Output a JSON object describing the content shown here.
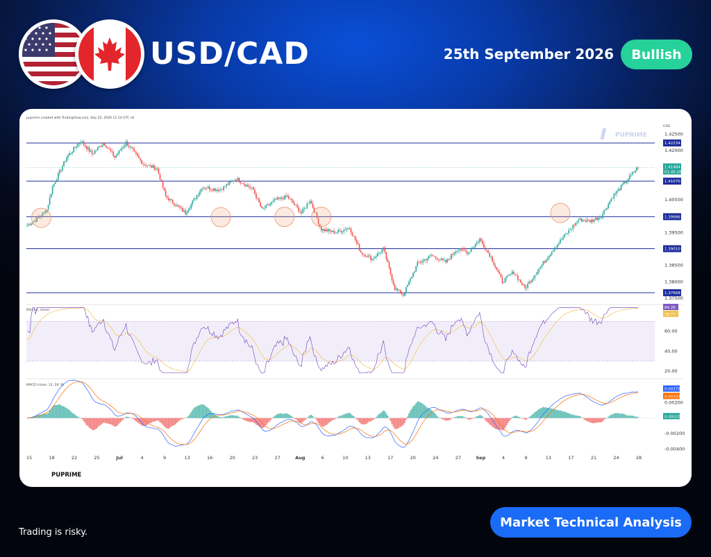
{
  "header": {
    "pair": "USD/CAD",
    "date": "25th September 2026",
    "bias": "Bullish",
    "flags": [
      "us-flag-icon",
      "canada-flag-icon"
    ]
  },
  "footer": {
    "disclaimer": "Trading is risky.",
    "button": "Market Technical Analysis"
  },
  "colors": {
    "accent_blue": "#1a6bf5",
    "bullish_green": "#26d29a",
    "candle_up": "#26a69a",
    "candle_down": "#ef5350",
    "level_line": "#1d2d9c"
  },
  "chart_data": {
    "type": "candlestick",
    "watermark": "PUPRIME",
    "caption": "puprime created with TradingView.com, Sep 25, 2026 11:14 UTC+8",
    "currency": "CAD",
    "price_axis": {
      "ticks": [
        "1.42500",
        "1.42000",
        "1.40500",
        "1.39500",
        "1.38500",
        "1.38000",
        "1.37500"
      ],
      "ylim": [
        1.3735,
        1.4285
      ]
    },
    "price_labels": [
      "1.42234",
      "1.41070",
      "1.39986",
      "1.39010",
      "1.37668"
    ],
    "horizontal_levels": [
      1.42234,
      1.4107,
      1.39986,
      1.3901,
      1.37668
    ],
    "current_price": {
      "value": "1.41484",
      "countdown": "01:45:26"
    },
    "x_ticks": [
      "15",
      "18",
      "22",
      "25",
      "Jul",
      "4",
      "9",
      "13",
      "16",
      "20",
      "23",
      "27",
      "Aug",
      "6",
      "10",
      "13",
      "17",
      "20",
      "24",
      "27",
      "Sep",
      "4",
      "9",
      "13",
      "17",
      "21",
      "24",
      "28"
    ],
    "close_path": [
      {
        "i": 0,
        "v": 1.3972
      },
      {
        "i": 8,
        "v": 1.3995
      },
      {
        "i": 14,
        "v": 1.402
      },
      {
        "i": 18,
        "v": 1.409
      },
      {
        "i": 28,
        "v": 1.418
      },
      {
        "i": 38,
        "v": 1.423
      },
      {
        "i": 46,
        "v": 1.419
      },
      {
        "i": 54,
        "v": 1.4225
      },
      {
        "i": 62,
        "v": 1.418
      },
      {
        "i": 70,
        "v": 1.4225
      },
      {
        "i": 82,
        "v": 1.416
      },
      {
        "i": 92,
        "v": 1.4145
      },
      {
        "i": 98,
        "v": 1.406
      },
      {
        "i": 112,
        "v": 1.401
      },
      {
        "i": 124,
        "v": 1.409
      },
      {
        "i": 136,
        "v": 1.408
      },
      {
        "i": 148,
        "v": 1.4115
      },
      {
        "i": 160,
        "v": 1.408
      },
      {
        "i": 166,
        "v": 1.402
      },
      {
        "i": 176,
        "v": 1.405
      },
      {
        "i": 184,
        "v": 1.406
      },
      {
        "i": 194,
        "v": 1.401
      },
      {
        "i": 200,
        "v": 1.405
      },
      {
        "i": 208,
        "v": 1.396
      },
      {
        "i": 218,
        "v": 1.395
      },
      {
        "i": 228,
        "v": 1.3965
      },
      {
        "i": 236,
        "v": 1.389
      },
      {
        "i": 244,
        "v": 1.387
      },
      {
        "i": 252,
        "v": 1.39
      },
      {
        "i": 260,
        "v": 1.378
      },
      {
        "i": 266,
        "v": 1.376
      },
      {
        "i": 276,
        "v": 1.3855
      },
      {
        "i": 286,
        "v": 1.388
      },
      {
        "i": 296,
        "v": 1.386
      },
      {
        "i": 304,
        "v": 1.39
      },
      {
        "i": 312,
        "v": 1.389
      },
      {
        "i": 320,
        "v": 1.393
      },
      {
        "i": 328,
        "v": 1.3875
      },
      {
        "i": 336,
        "v": 1.38
      },
      {
        "i": 344,
        "v": 1.383
      },
      {
        "i": 352,
        "v": 1.378
      },
      {
        "i": 362,
        "v": 1.384
      },
      {
        "i": 372,
        "v": 1.39
      },
      {
        "i": 382,
        "v": 1.395
      },
      {
        "i": 390,
        "v": 1.399
      },
      {
        "i": 398,
        "v": 1.3985
      },
      {
        "i": 406,
        "v": 1.4
      },
      {
        "i": 414,
        "v": 1.406
      },
      {
        "i": 424,
        "v": 1.411
      },
      {
        "i": 432,
        "v": 1.415
      }
    ],
    "candle_count": 433,
    "highlight_circles": [
      {
        "i": 10,
        "v": 1.3995
      },
      {
        "i": 137,
        "v": 1.3997
      },
      {
        "i": 182,
        "v": 1.3998
      },
      {
        "i": 208,
        "v": 1.3998
      },
      {
        "i": 377,
        "v": 1.401
      }
    ],
    "rsi": {
      "label": "RSI (14, close)",
      "values_shown": [
        "84.26",
        "78.77"
      ],
      "ticks": [
        "60.00",
        "40.00",
        "20.00"
      ],
      "band": [
        30,
        70
      ],
      "ylim": [
        15,
        85
      ]
    },
    "macd": {
      "label": "MACD (close, 12, 26, 9)",
      "values_shown": [
        "0.00375",
        "0.00333",
        "0.00020"
      ],
      "ticks": [
        "0.00200",
        "-0.00200",
        "-0.00400"
      ],
      "ylim": [
        -0.0044,
        0.0047
      ]
    }
  }
}
